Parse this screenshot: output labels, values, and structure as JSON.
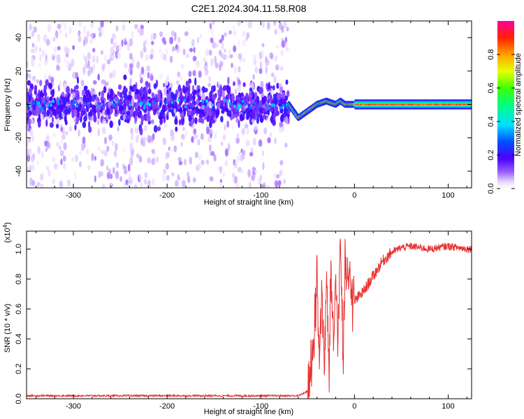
{
  "title": "C2E1.2024.304.11.58.R08",
  "chart_data": [
    {
      "type": "heatmap",
      "xlabel": "Height of straight line (km)",
      "ylabel": "Frequency (Hz)",
      "xlim": [
        -350,
        125
      ],
      "ylim": [
        -50,
        50
      ],
      "xticks": [
        -300,
        -200,
        -100,
        0,
        100
      ],
      "yticks": [
        -40,
        -20,
        0,
        20,
        40
      ],
      "colorbar": {
        "label": "Normalized spectral amplitude",
        "range": [
          0,
          1
        ],
        "ticks": [
          "0.0",
          "0.2",
          "0.4",
          "0.6",
          "0.8"
        ],
        "tick_values": [
          0.0,
          0.2,
          0.4,
          0.6,
          0.8
        ]
      },
      "regions": [
        {
          "x": [
            -350,
            -70
          ],
          "freq_core_halfwidth_hz": 8,
          "freq_scatter_halfwidth_hz": 50,
          "amplitude": 0.12
        },
        {
          "x": [
            -70,
            0
          ],
          "freq_center_hz": [
            [
              -70,
              0
            ],
            [
              -60,
              -8
            ],
            [
              -50,
              -4
            ],
            [
              -40,
              0
            ],
            [
              -30,
              2
            ],
            [
              -20,
              0
            ],
            [
              -15,
              2
            ],
            [
              -10,
              0
            ],
            [
              0,
              0
            ]
          ],
          "amplitude": 0.4
        },
        {
          "x": [
            0,
            125
          ],
          "freq_center_hz": 0,
          "freq_halfwidth_hz": 3,
          "amplitude": 0.85
        }
      ]
    },
    {
      "type": "line",
      "xlabel": "Height of straight line (km)",
      "ylabel": "SNR (10 * v/v)",
      "y_multiplier": "(x10",
      "y_multiplier_exp": "4",
      "y_multiplier_close": ")",
      "xlim": [
        -350,
        125
      ],
      "ylim": [
        0,
        1.12
      ],
      "xticks": [
        -300,
        -200,
        -100,
        0,
        100
      ],
      "yticks": [
        0.0,
        0.2,
        0.4,
        0.6,
        0.8,
        1.0
      ],
      "ytick_labels": [
        "0.0",
        "0.2",
        "0.4",
        "0.6",
        "0.8",
        "1.0"
      ],
      "color": "#e83030",
      "series": [
        {
          "x": [
            -350,
            -300,
            -200,
            -100,
            -60,
            -50,
            -45,
            -42,
            -40,
            -38,
            -35,
            -32,
            -30,
            -27,
            -25,
            -22,
            -20,
            -18,
            -15,
            -12,
            -10,
            -5,
            0,
            10,
            20,
            30,
            40,
            50,
            60,
            80,
            100,
            110,
            125
          ],
          "y": [
            0.02,
            0.02,
            0.02,
            0.02,
            0.02,
            0.05,
            0.25,
            0.55,
            0.85,
            0.3,
            0.7,
            0.2,
            0.8,
            0.15,
            0.9,
            0.3,
            0.95,
            0.3,
            1.1,
            0.2,
            0.85,
            0.75,
            0.65,
            0.72,
            0.82,
            0.92,
            0.98,
            1.01,
            1.02,
            1.0,
            1.02,
            1.01,
            1.0
          ]
        }
      ]
    }
  ]
}
